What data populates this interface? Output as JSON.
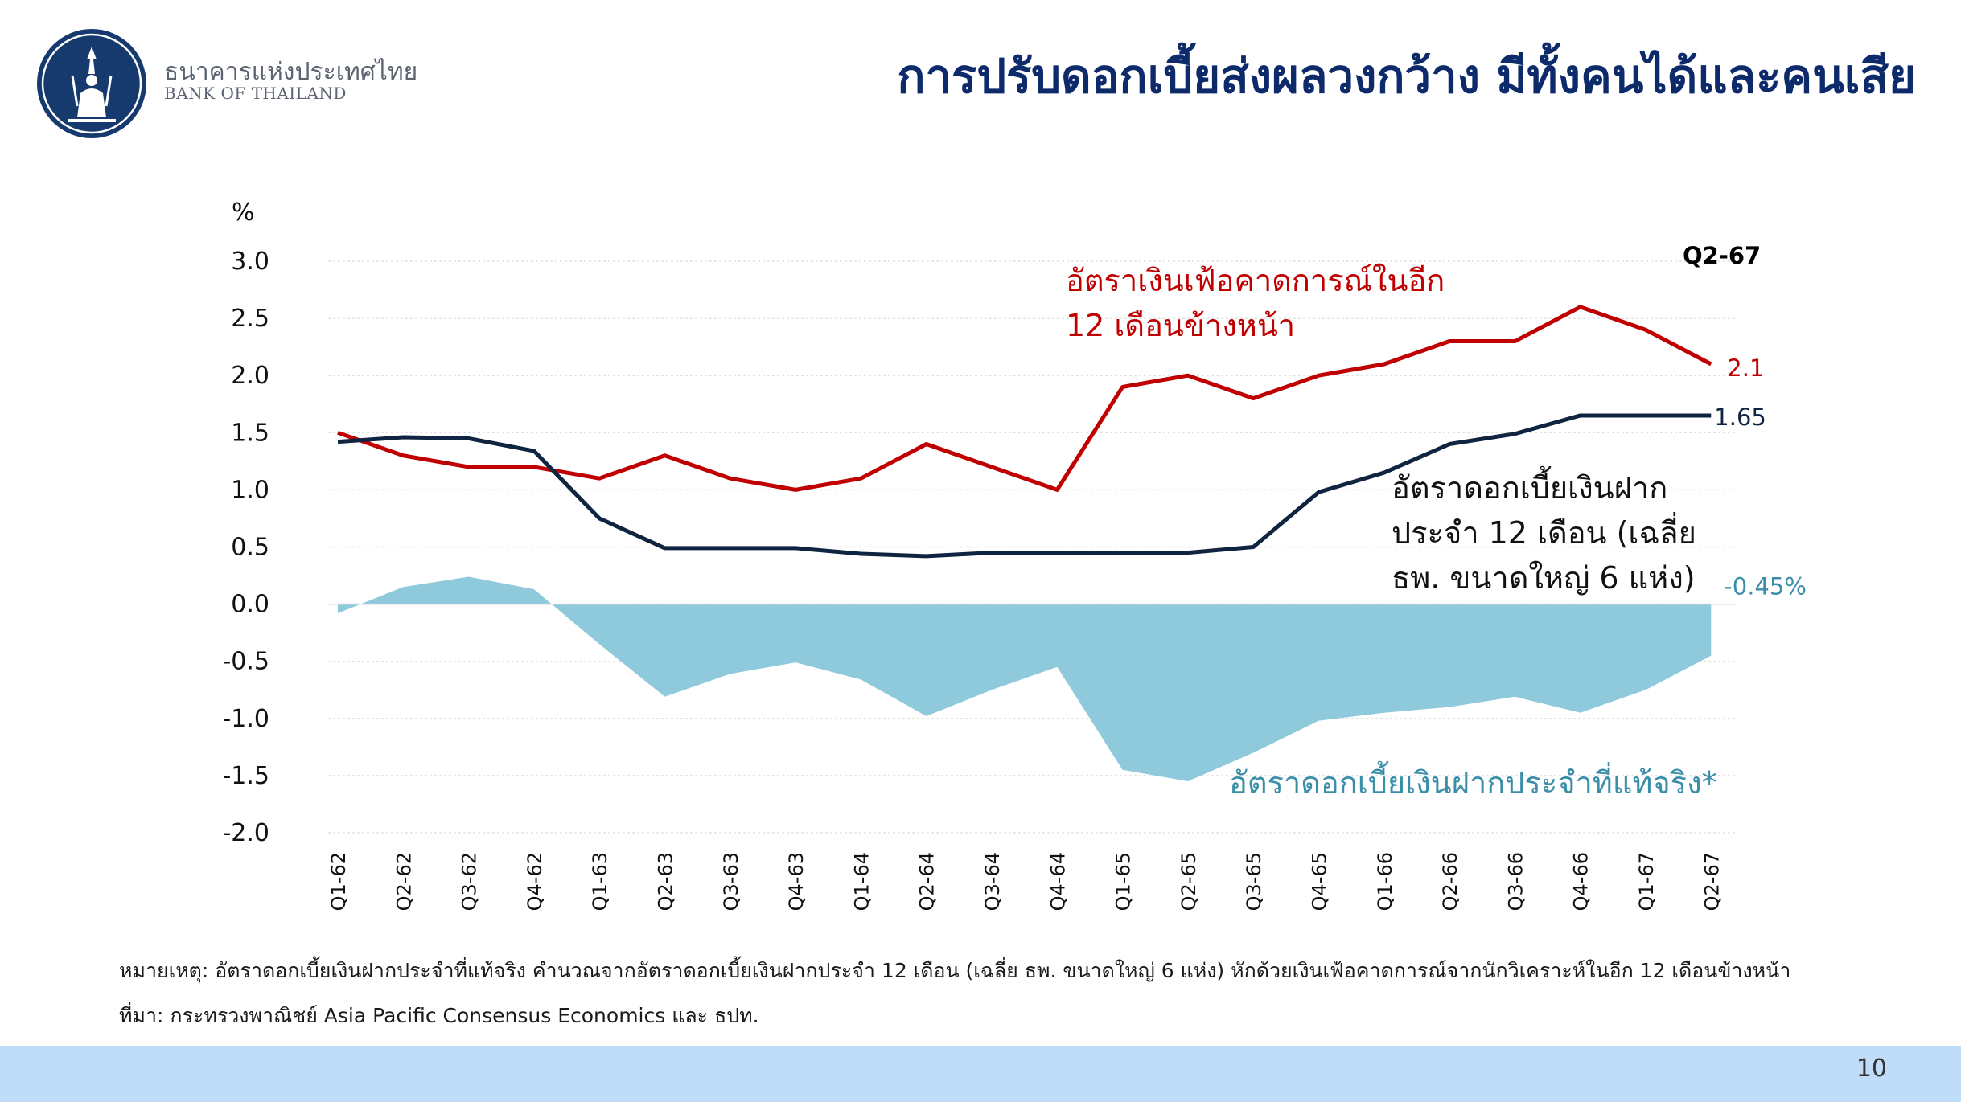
{
  "header": {
    "org_name_th": "ธนาคารแห่งประเทศไทย",
    "org_name_en": "BANK OF THAILAND",
    "title": "การปรับดอกเบี้ยส่งผลวงกว้าง มีทั้งคนได้และคนเสีย"
  },
  "colors": {
    "inflation": "#c00000",
    "deposit": "#0f2440",
    "real_rate": "#8fc9dc",
    "real_rate_text": "#3a8ea8",
    "title": "#0d2a6b",
    "footer": "#bfdcf8"
  },
  "chart_data": {
    "type": "line",
    "ylabel": "%",
    "ylim": [
      -2.0,
      3.0
    ],
    "yticks": [
      "3.0",
      "2.5",
      "2.0",
      "1.5",
      "1.0",
      "0.5",
      "0.0",
      "-0.5",
      "-1.0",
      "-1.5",
      "-2.0"
    ],
    "ytick_values": [
      3.0,
      2.5,
      2.0,
      1.5,
      1.0,
      0.5,
      0.0,
      -0.5,
      -1.0,
      -1.5,
      -2.0
    ],
    "grid": true,
    "categories": [
      "Q1-62",
      "Q2-62",
      "Q3-62",
      "Q4-62",
      "Q1-63",
      "Q2-63",
      "Q3-63",
      "Q4-63",
      "Q1-64",
      "Q2-64",
      "Q3-64",
      "Q4-64",
      "Q1-65",
      "Q2-65",
      "Q3-65",
      "Q4-65",
      "Q1-66",
      "Q2-66",
      "Q3-66",
      "Q4-66",
      "Q1-67",
      "Q2-67"
    ],
    "period_label": "Q2-67",
    "series": [
      {
        "name": "อัตราเงินเฟ้อคาดการณ์ในอีก\n12 เดือนข้างหน้า",
        "name_lines": [
          "อัตราเงินเฟ้อคาดการณ์ในอีก",
          "12 เดือนข้างหน้า"
        ],
        "kind": "line",
        "values": [
          1.5,
          1.3,
          1.2,
          1.2,
          1.1,
          1.3,
          1.1,
          1.0,
          1.1,
          1.4,
          1.2,
          1.0,
          1.9,
          2.0,
          1.8,
          2.0,
          2.1,
          2.3,
          2.3,
          2.6,
          2.4,
          2.1
        ],
        "end_label": "2.1"
      },
      {
        "name": "อัตราดอกเบี้ยเงินฝาก\nประจำ 12 เดือน (เฉลี่ย\nธพ. ขนาดใหญ่ 6 แห่ง)",
        "name_lines": [
          "อัตราดอกเบี้ยเงินฝาก",
          "ประจำ 12 เดือน (เฉลี่ย",
          "ธพ. ขนาดใหญ่ 6 แห่ง)"
        ],
        "kind": "line",
        "values": [
          1.42,
          1.46,
          1.45,
          1.34,
          0.75,
          0.49,
          0.49,
          0.49,
          0.44,
          0.42,
          0.45,
          0.45,
          0.45,
          0.45,
          0.5,
          0.98,
          1.15,
          1.4,
          1.49,
          1.65,
          1.65,
          1.65
        ],
        "end_label": "1.65"
      },
      {
        "name": "อัตราดอกเบี้ยเงินฝากประจำที่แท้จริง*",
        "kind": "area",
        "values": [
          -0.08,
          0.15,
          0.24,
          0.13,
          -0.35,
          -0.81,
          -0.61,
          -0.51,
          -0.66,
          -0.98,
          -0.75,
          -0.55,
          -1.45,
          -1.55,
          -1.3,
          -1.02,
          -0.95,
          -0.9,
          -0.81,
          -0.95,
          -0.75,
          -0.45
        ],
        "end_label": "-0.45%"
      }
    ]
  },
  "footnote": {
    "note": "หมายเหตุ: อัตราดอกเบี้ยเงินฝากประจำที่แท้จริง คำนวณจากอัตราดอกเบี้ยเงินฝากประจำ 12 เดือน (เฉลี่ย ธพ. ขนาดใหญ่ 6 แห่ง) หักด้วยเงินเฟ้อคาดการณ์จากนักวิเคราะห์ในอีก 12 เดือนข้างหน้า",
    "source": "ที่มา: กระทรวงพาณิชย์ Asia Pacific Consensus Economics และ ธปท."
  },
  "page_number": "10"
}
